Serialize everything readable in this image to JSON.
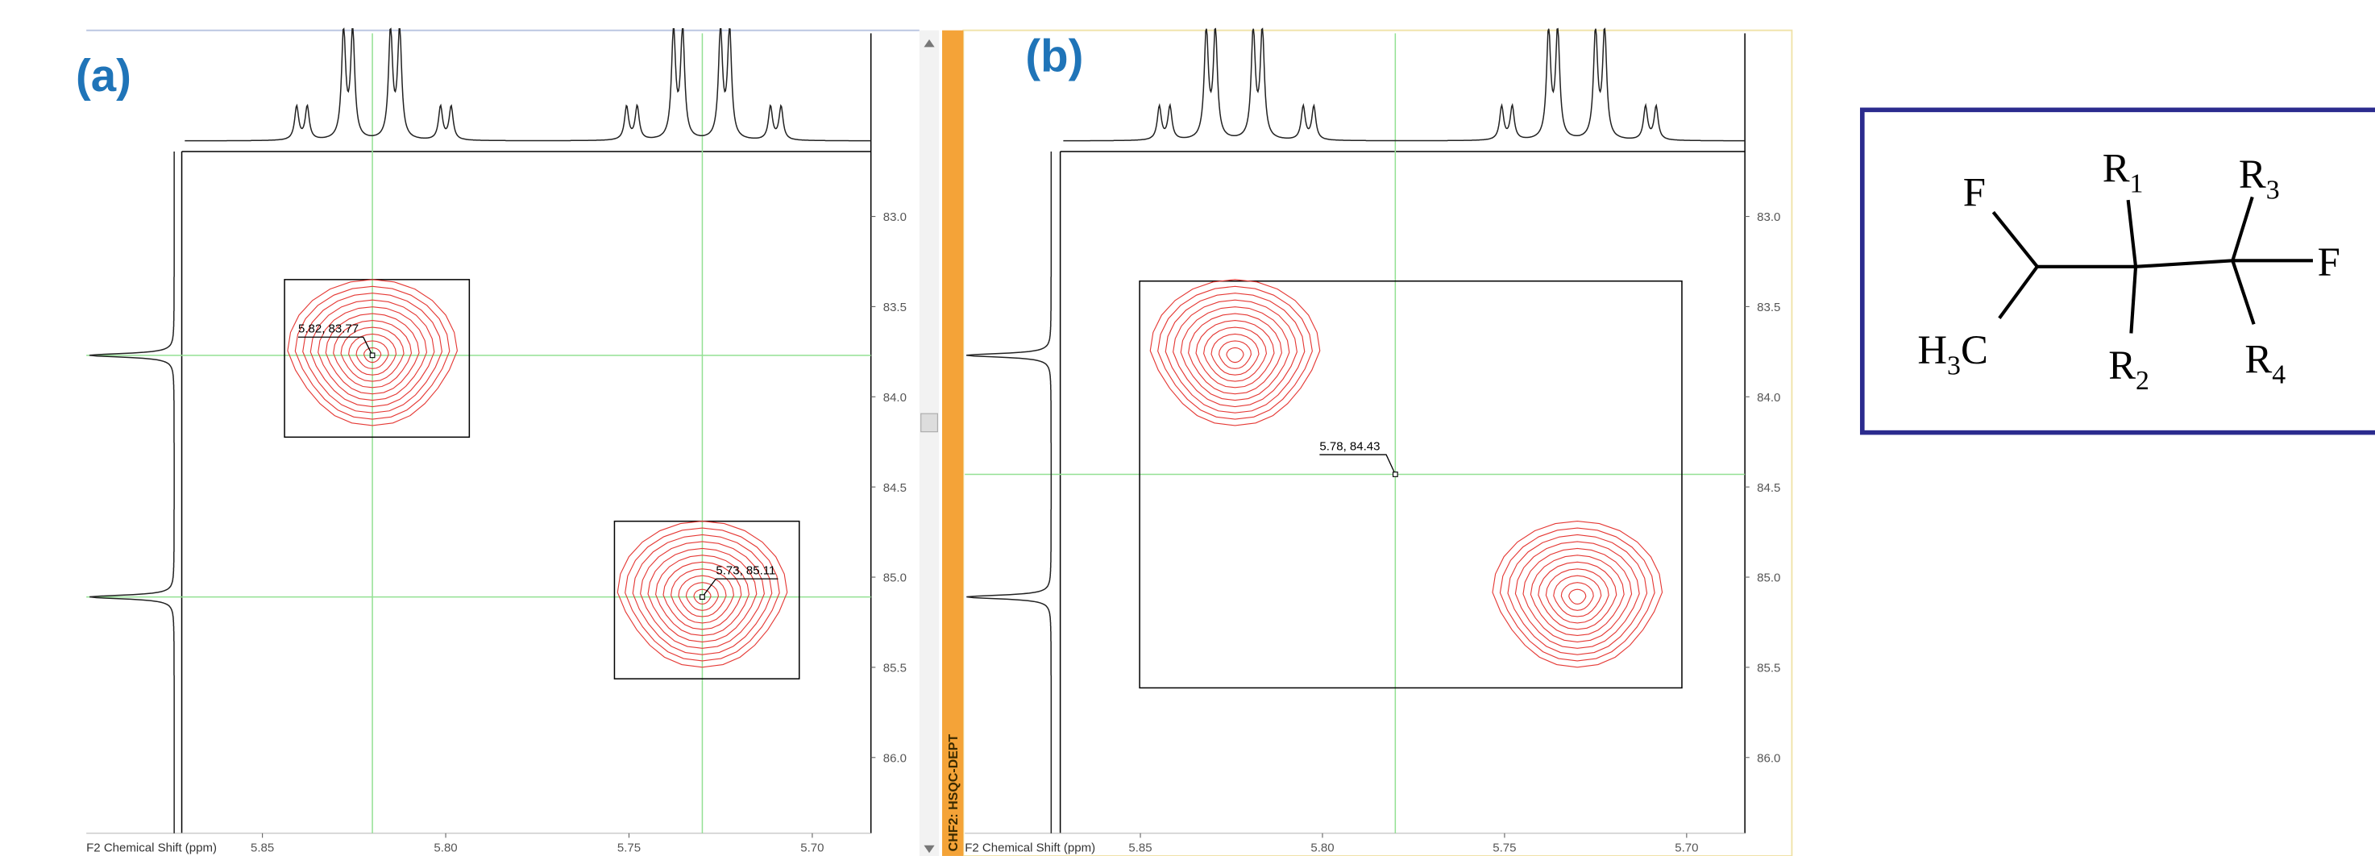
{
  "chart_data": [
    {
      "type": "contour",
      "label": "(a)",
      "x_label": "F2 Chemical Shift (ppm)",
      "xlim": [
        5.872,
        5.684
      ],
      "xticks": [
        5.85,
        {
          "value": 5.8,
          "label": "5.80"
        },
        5.75,
        {
          "value": 5.7,
          "label": "5.70"
        }
      ],
      "ylim": [
        82.64,
        86.42
      ],
      "yticks": [
        {
          "value": 83,
          "label": "83.0"
        },
        83.5,
        {
          "value": 84,
          "label": "84.0"
        },
        84.5,
        {
          "value": 85,
          "label": "85.0"
        },
        85.5,
        {
          "value": 86,
          "label": "86.0"
        }
      ],
      "color": "#e53935",
      "peaks": {
        "x": [
          5.82,
          5.73
        ],
        "y": [
          83.77,
          85.11
        ],
        "labels": [
          "5.82, 83.77",
          "5.73, 85.11"
        ]
      }
    },
    {
      "type": "contour",
      "label": "(b)",
      "x_label": "F2 Chemical Shift (ppm)",
      "xlim": [
        5.872,
        5.684
      ],
      "xticks": [
        5.85,
        {
          "value": 5.8,
          "label": "5.80"
        },
        5.75,
        {
          "value": 5.7,
          "label": "5.70"
        }
      ],
      "ylim": [
        82.64,
        86.42
      ],
      "yticks": [
        {
          "value": 83,
          "label": "83.0"
        },
        83.5,
        {
          "value": 84,
          "label": "84.0"
        },
        84.5,
        {
          "value": 85,
          "label": "85.0"
        },
        85.5,
        {
          "value": 86,
          "label": "86.0"
        }
      ],
      "color": "#e53935",
      "peaks": {
        "x": [
          5.824,
          5.73
        ],
        "y": [
          83.77,
          85.11
        ]
      },
      "cursor": {
        "x": 5.78,
        "y": 84.43,
        "label": "5.78, 84.43"
      }
    }
  ],
  "sidebar": "CHF2: HSQC-DEPT",
  "molecule": {
    "atoms": [
      {
        "text": "F"
      },
      {
        "text": "H",
        "sub": "3",
        "tail": "C"
      },
      {
        "text": "R",
        "sub": "1"
      },
      {
        "text": "R",
        "sub": "2"
      },
      {
        "text": "R",
        "sub": "3"
      },
      {
        "text": "R",
        "sub": "4"
      },
      {
        "text": "F"
      }
    ]
  }
}
